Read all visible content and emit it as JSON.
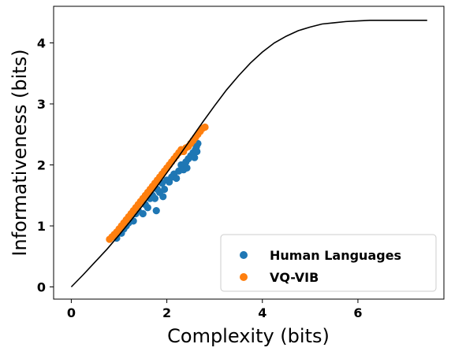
{
  "chart_data": {
    "type": "scatter",
    "xlabel": "Complexity (bits)",
    "ylabel": "Informativeness (bits)",
    "xlim": [
      -0.37,
      7.8
    ],
    "ylim": [
      -0.2,
      4.6
    ],
    "xticks": [
      0,
      2,
      4,
      6
    ],
    "yticks": [
      0,
      1,
      2,
      3,
      4
    ],
    "grid": false,
    "legend_position": "bottom-right",
    "curve": {
      "color": "#000000",
      "x": [
        0.0,
        0.25,
        0.5,
        0.75,
        1.0,
        1.25,
        1.5,
        1.75,
        2.0,
        2.25,
        2.5,
        2.75,
        3.0,
        3.25,
        3.5,
        3.75,
        4.0,
        4.25,
        4.5,
        4.75,
        5.0,
        5.25,
        5.5,
        5.75,
        6.0,
        6.25,
        6.5,
        6.75,
        7.0,
        7.25,
        7.45
      ],
      "y": [
        0.0,
        0.2,
        0.41,
        0.62,
        0.85,
        1.09,
        1.34,
        1.6,
        1.87,
        2.14,
        2.42,
        2.7,
        2.97,
        3.23,
        3.46,
        3.67,
        3.85,
        4.0,
        4.11,
        4.2,
        4.26,
        4.31,
        4.33,
        4.35,
        4.36,
        4.37,
        4.37,
        4.37,
        4.37,
        4.37,
        4.37
      ]
    },
    "series": [
      {
        "name": "Human Languages",
        "color": "#1f77b4",
        "points": [
          [
            0.95,
            0.8
          ],
          [
            1.0,
            0.9
          ],
          [
            1.05,
            0.88
          ],
          [
            1.1,
            0.95
          ],
          [
            1.15,
            1.0
          ],
          [
            1.2,
            1.05
          ],
          [
            1.25,
            1.1
          ],
          [
            1.3,
            1.08
          ],
          [
            1.35,
            1.2
          ],
          [
            1.4,
            1.25
          ],
          [
            1.5,
            1.2
          ],
          [
            1.55,
            1.35
          ],
          [
            1.6,
            1.3
          ],
          [
            1.65,
            1.45
          ],
          [
            1.7,
            1.5
          ],
          [
            1.75,
            1.45
          ],
          [
            1.78,
            1.25
          ],
          [
            1.8,
            1.6
          ],
          [
            1.85,
            1.55
          ],
          [
            1.9,
            1.7
          ],
          [
            1.92,
            1.48
          ],
          [
            1.95,
            1.6
          ],
          [
            2.0,
            1.75
          ],
          [
            2.05,
            1.72
          ],
          [
            2.1,
            1.8
          ],
          [
            2.15,
            1.85
          ],
          [
            2.2,
            1.78
          ],
          [
            2.25,
            1.9
          ],
          [
            2.3,
            2.0
          ],
          [
            2.35,
            1.92
          ],
          [
            2.4,
            2.05
          ],
          [
            2.42,
            1.95
          ],
          [
            2.45,
            2.1
          ],
          [
            2.5,
            2.15
          ],
          [
            2.55,
            2.2
          ],
          [
            2.58,
            2.12
          ],
          [
            2.6,
            2.25
          ],
          [
            2.62,
            2.3
          ],
          [
            2.65,
            2.35
          ],
          [
            2.63,
            2.22
          ]
        ]
      },
      {
        "name": "VQ-VIB",
        "color": "#ff7f0e",
        "points": [
          [
            0.8,
            0.78
          ],
          [
            0.85,
            0.82
          ],
          [
            0.9,
            0.86
          ],
          [
            0.95,
            0.9
          ],
          [
            1.0,
            0.95
          ],
          [
            1.05,
            1.0
          ],
          [
            1.1,
            1.05
          ],
          [
            1.15,
            1.1
          ],
          [
            1.2,
            1.15
          ],
          [
            1.25,
            1.2
          ],
          [
            1.3,
            1.25
          ],
          [
            1.35,
            1.3
          ],
          [
            1.4,
            1.35
          ],
          [
            1.45,
            1.4
          ],
          [
            1.5,
            1.45
          ],
          [
            1.55,
            1.5
          ],
          [
            1.6,
            1.55
          ],
          [
            1.65,
            1.6
          ],
          [
            1.7,
            1.65
          ],
          [
            1.75,
            1.7
          ],
          [
            1.8,
            1.75
          ],
          [
            1.85,
            1.8
          ],
          [
            1.9,
            1.85
          ],
          [
            1.95,
            1.9
          ],
          [
            2.0,
            1.95
          ],
          [
            2.05,
            2.0
          ],
          [
            2.1,
            2.05
          ],
          [
            2.15,
            2.1
          ],
          [
            2.2,
            2.15
          ],
          [
            2.25,
            2.2
          ],
          [
            2.3,
            2.25
          ],
          [
            2.35,
            2.22
          ],
          [
            2.4,
            2.28
          ],
          [
            2.45,
            2.3
          ],
          [
            2.5,
            2.35
          ],
          [
            2.55,
            2.4
          ],
          [
            2.6,
            2.45
          ],
          [
            2.65,
            2.5
          ],
          [
            2.7,
            2.55
          ],
          [
            2.75,
            2.6
          ],
          [
            2.8,
            2.62
          ]
        ]
      }
    ]
  }
}
